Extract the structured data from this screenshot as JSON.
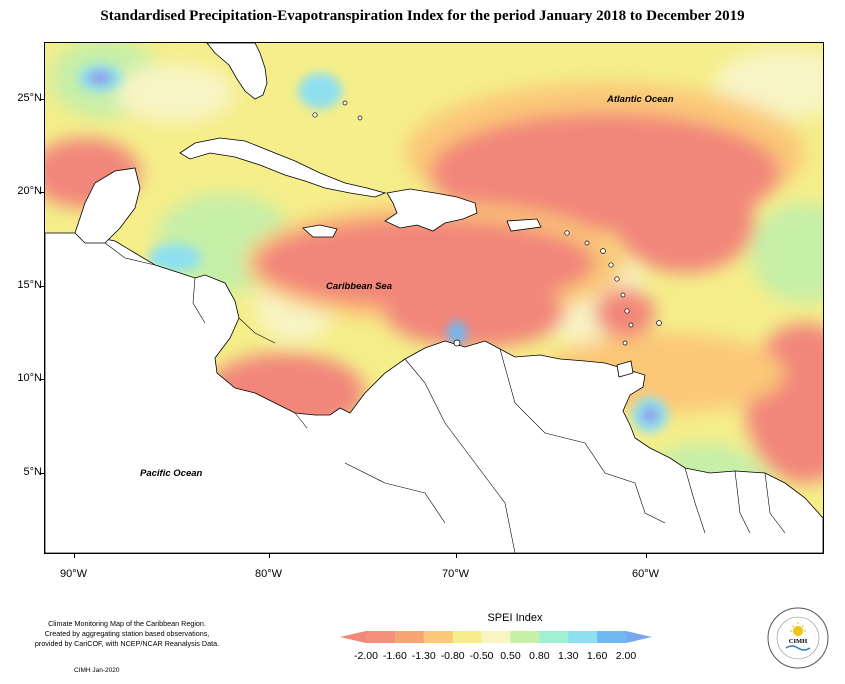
{
  "title": "Standardised Precipitation-Evapotranspiration Index for the period January 2018 to December 2019",
  "map": {
    "latitude_labels": [
      "25°N",
      "20°N",
      "15°N",
      "10°N",
      "5°N"
    ],
    "longitude_labels": [
      "90°W",
      "80°W",
      "70°W",
      "60°W"
    ],
    "ocean_labels": {
      "atlantic": "Atlantic Ocean",
      "caribbean": "Caribbean Sea",
      "pacific": "Pacific Ocean"
    },
    "colors": {
      "extremely_dry": "#f2867a",
      "severely_dry": "#f7a673",
      "moderately_dry": "#fbc878",
      "mild_dry": "#f5ee8a",
      "near_normal": "#f8f4c4",
      "mild_wet": "#c6efa8",
      "moderately_wet": "#9ff0d2",
      "very_wet": "#8ee0f0",
      "severely_wet": "#6fb8f0",
      "extremely_wet": "#8f9be8",
      "land": "#ffffff"
    }
  },
  "legend": {
    "title": "SPEI Index",
    "labels": [
      "-2.00",
      "-1.60",
      "-1.30",
      "-0.80",
      "-0.50",
      "0.50",
      "0.80",
      "1.30",
      "1.60",
      "2.00"
    ],
    "colors": [
      "#f2867a",
      "#f5917a",
      "#f7a673",
      "#fbc878",
      "#f5ee8a",
      "#f8f4c4",
      "#c6efa8",
      "#9ff0d2",
      "#8ee0f0",
      "#6fb8f0",
      "#7aa6f0"
    ]
  },
  "credits": {
    "line1": "Climate Monitoring Map of the Caribbean Region.",
    "line2": "Created by aggregating station based observations,",
    "line3": "provided by CariCOF, with NCEP/NCAR Reanalysis Data.",
    "date": "CIMH Jan-2020"
  },
  "logo": {
    "text": "CIMH",
    "ring_text": "Caribbean Institute for Meteorology and Hydrology"
  }
}
